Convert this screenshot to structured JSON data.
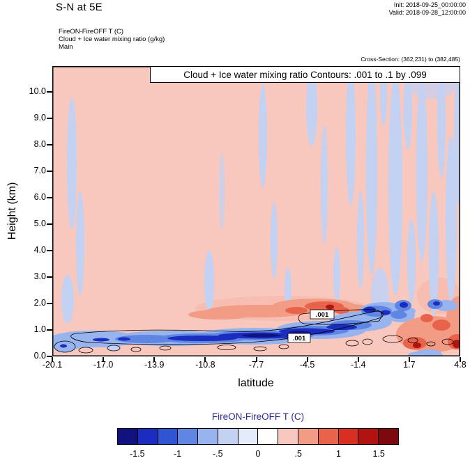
{
  "header": {
    "title": "S-N at 5E",
    "init_line": "Init: 2018-09-25_00:00:00",
    "valid_line": "Valid: 2018-09-28_12:00:00",
    "overlay_field_line": "FireON-FireOFF T   (C)",
    "contour_field_line": "Cloud + Ice water mixing ratio   (g/kg)",
    "grid_line": "Main",
    "cross_section_line": "Cross-Section: (362,231) to (382,485)"
  },
  "plot": {
    "contour_info": "Cloud + Ice water mixing ratio Contours: .001 to .1 by .099",
    "xlabel": "latitude",
    "ylabel": "Height (km)",
    "contour_label_upper": ".001",
    "contour_label_lower": ".001"
  },
  "chart_data": {
    "type": "heatmap",
    "title": "S-N at 5E",
    "shaded_field": "FireON-FireOFF T (C)",
    "contour_field": "Cloud + Ice water mixing ratio (g/kg)",
    "cross_section": "(362,231) to (382,485)",
    "xlabel": "latitude",
    "ylabel": "Height (km)",
    "x_ticks": [
      "-20.1",
      "-17.0",
      "-13.9",
      "-10.8",
      "-7.7",
      "-4.5",
      "-1.4",
      "1.7",
      "4.8"
    ],
    "y_ticks": [
      "10.0",
      "9.0",
      "8.0",
      "7.0",
      "6.0",
      "5.0",
      "4.0",
      "3.0",
      "2.0",
      "1.0",
      "0.0"
    ],
    "xlim": [
      -20.1,
      4.8
    ],
    "ylim_km": [
      0,
      11
    ],
    "cloud_contour_levels": [
      0.001,
      0.1
    ],
    "cloud_contour_step": 0.099,
    "colorbar": {
      "title": "FireON-FireOFF T  (C)",
      "tick_labels": [
        "-1.5",
        "-1",
        "-.5",
        "0",
        ".5",
        "1",
        "1.5"
      ],
      "levels": [
        -1.75,
        -1.5,
        -1.25,
        -1,
        -0.75,
        -0.5,
        -0.25,
        0,
        0.25,
        0.5,
        0.75,
        1,
        1.25,
        1.5,
        1.75
      ],
      "colors": [
        "#10127f",
        "#1b2cc0",
        "#2f55d2",
        "#5f86e3",
        "#97b4ee",
        "#c3d2f3",
        "#e4ebfa",
        "#ffffff",
        "#f8c7bd",
        "#f29b85",
        "#e9634a",
        "#d92f23",
        "#b01310",
        "#7d090e"
      ]
    },
    "features": [
      {
        "name": "low-level cooling band",
        "lat_range": [
          -20,
          0
        ],
        "height_km": [
          0.5,
          1.6
        ],
        "t_diff_c": [
          -1.5,
          -0.25
        ],
        "note": "strongest (below -1 C) between lat -14 and -4 near 1 km, band rises toward lat -1.4"
      },
      {
        "name": "warming layer above band",
        "lat_range": [
          -11,
          -3.5
        ],
        "height_km": [
          1.5,
          2.3
        ],
        "t_diff_c": [
          0.25,
          1.25
        ],
        "note": "dark red core near lat -5 at ~1.9 km"
      },
      {
        "name": "mixed strong anomalies",
        "lat_range": [
          0.5,
          4.8
        ],
        "height_km": [
          0.2,
          2.2
        ],
        "t_diff_c": [
          -1.75,
          1.75
        ],
        "note": "adjacent warm and cold cells with extremes beyond +/-1.5 C"
      },
      {
        "name": "cold vertical streaks",
        "lat_range": [
          -20,
          4.8
        ],
        "height_km": [
          2,
          11
        ],
        "t_diff_c": [
          -0.5,
          0
        ],
        "note": "narrow plumes, mostly right of lat -8; two near lat -19"
      },
      {
        "name": "background",
        "t_diff_c": [
          0,
          0.5
        ],
        "note": "weak warm anomaly (light pink) over most of the section"
      }
    ],
    "cloud_contours": {
      "labels": [
        ".001",
        ".001"
      ],
      "regions": [
        {
          "lat_range": [
            -19.5,
            -0.8
          ],
          "height_km": [
            0.5,
            1.1
          ],
          "note": "elongated .001 outline around the low-level band"
        },
        {
          "lat_range": [
            -5,
            -0.8
          ],
          "height_km": [
            1.2,
            1.7
          ],
          "note": "boxed .001 outline above the band"
        },
        {
          "note": "small closed .001 cells near 0.3-0.8 km scattered across the section"
        }
      ]
    }
  }
}
